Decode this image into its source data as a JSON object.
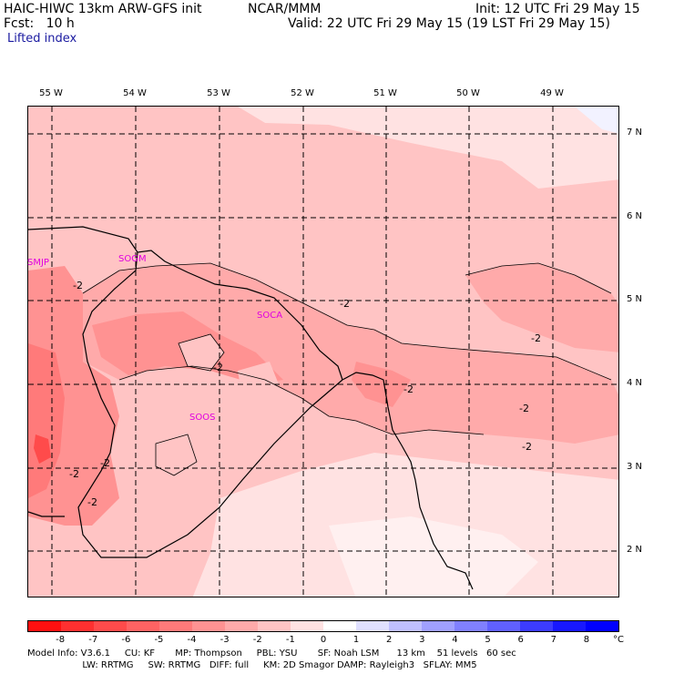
{
  "header": {
    "model": "HAIC-HIWC 13km ARW-GFS init",
    "org": "NCAR/MMM",
    "init": "Init: 12 UTC Fri 29 May 15",
    "fcst": "Fcst:   10 h",
    "valid": "Valid: 22 UTC Fri 29 May 15 (19 LST Fri 29 May 15)",
    "field": "Lifted index"
  },
  "map": {
    "lon_labels": [
      "55 W",
      "54 W",
      "53 W",
      "52 W",
      "51 W",
      "50 W",
      "49 W"
    ],
    "lat_labels": [
      "7 N",
      "6 N",
      "5 N",
      "4 N",
      "3 N",
      "2 N"
    ],
    "stations": [
      "SMJP",
      "SOGM",
      "SOCA",
      "SOOS"
    ],
    "contour_label": "-2"
  },
  "colorbar": {
    "ticks": [
      "-8",
      "-7",
      "-6",
      "-5",
      "-4",
      "-3",
      "-2",
      "-1",
      "0",
      "1",
      "2",
      "3",
      "4",
      "5",
      "6",
      "7",
      "8"
    ],
    "unit": "°C",
    "colors": [
      "#ff1010",
      "#ff3030",
      "#ff4b4b",
      "#ff6363",
      "#ff7a7a",
      "#ff9292",
      "#ffaaaa",
      "#ffc4c4",
      "#ffe2e2",
      "#ffffff",
      "#e0e0ff",
      "#c0c0ff",
      "#a0a0ff",
      "#8080ff",
      "#6060ff",
      "#3c3cff",
      "#1818ff",
      "#0000ff"
    ]
  },
  "footer": {
    "line1": "Model Info: V3.6.1     CU: KF       MP: Thompson     PBL: YSU       SF: Noah LSM      13 km    51 levels   60 sec",
    "line2": "                   LW: RRTMG     SW: RRTMG   DIFF: full     KM: 2D Smagor DAMP: Rayleigh3   SFLAY: MM5"
  }
}
